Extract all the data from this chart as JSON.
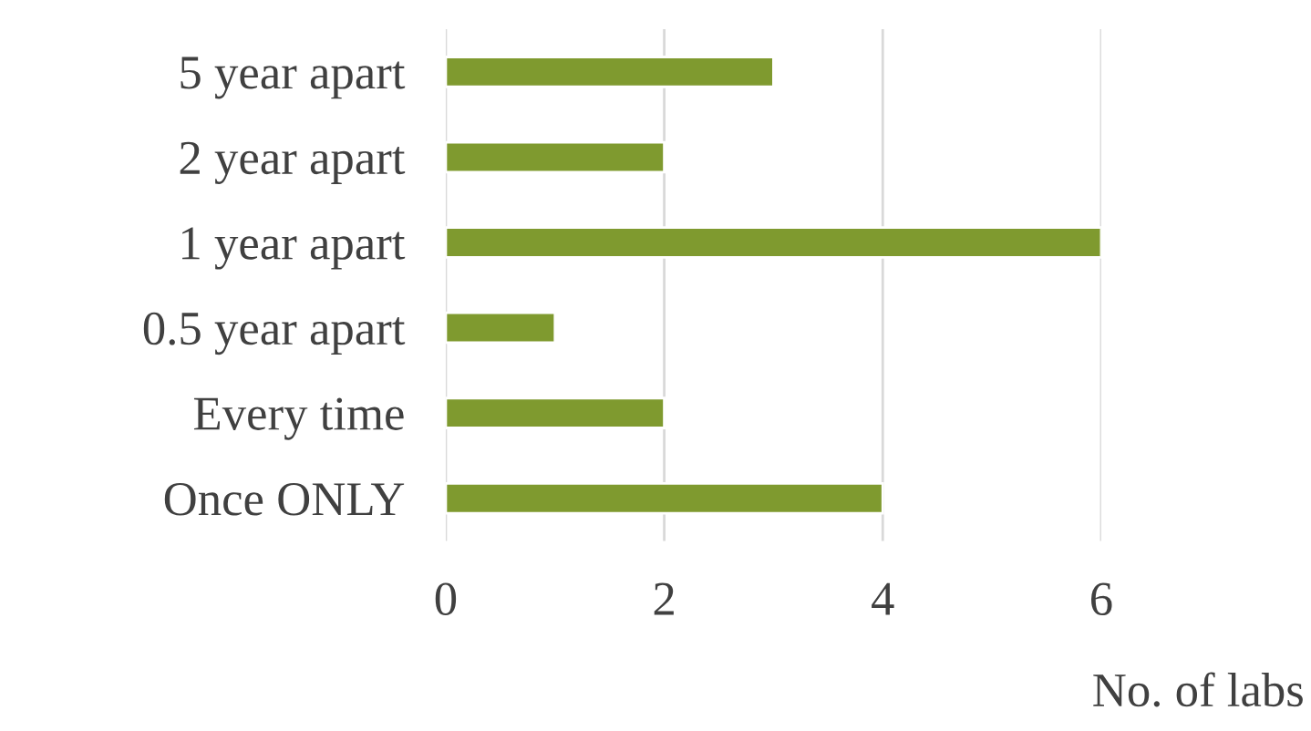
{
  "chart_data": {
    "type": "bar",
    "orientation": "horizontal",
    "categories": [
      "5 year apart",
      "2 year apart",
      "1 year apart",
      "0.5 year apart",
      "Every time",
      "Once ONLY"
    ],
    "values": [
      3,
      2,
      6,
      1,
      2,
      4
    ],
    "color": "#7f9a2f",
    "xlim": [
      0,
      6
    ],
    "xticks": [
      0,
      2,
      4,
      6
    ],
    "xlabel": "No. of labs",
    "grid": "x",
    "legend": false
  }
}
